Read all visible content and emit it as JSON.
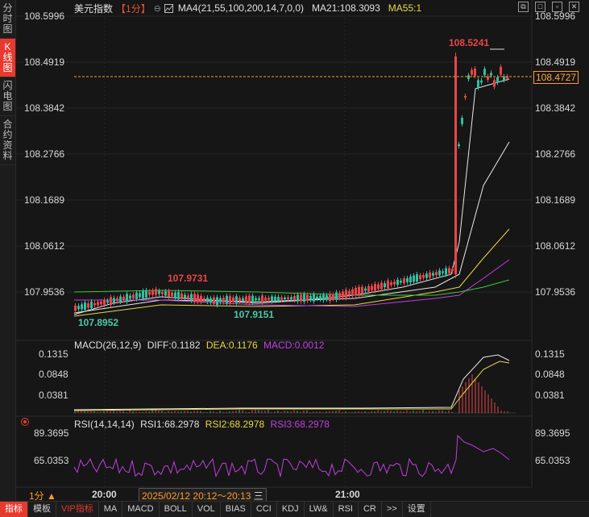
{
  "side_tabs": [
    {
      "label": "分时图"
    },
    {
      "label": "K线图"
    },
    {
      "label": "闪电图"
    },
    {
      "label": "合约资料"
    }
  ],
  "header": {
    "title": "美元指数",
    "period": "【1分】",
    "ma4": "MA4(21,55,100,200,14,7,0,0)",
    "ma21": "MA21:108.3093",
    "ma55": "MA55:1"
  },
  "window_controls": [
    "restore-icon",
    "maximize-icon",
    "window-icon",
    "close-icon"
  ],
  "price_axis": {
    "ticks": [
      "108.5996",
      "108.4919",
      "108.3842",
      "108.2766",
      "108.1689",
      "108.0612",
      "107.9536"
    ],
    "current_price": "108.4727",
    "current_price_color": "#ff9a2a"
  },
  "annotations": {
    "high_label": "108.5241",
    "mid_high_label": "107.9731",
    "low_label_1": "107.8952",
    "low_label_2": "107.9151"
  },
  "macd": {
    "label": "MACD(26,12,9)",
    "diff": "DIFF:0.1182",
    "dea": "DEA:0.1176",
    "macd": "MACD:0.0012",
    "ticks": [
      "0.1315",
      "0.0848",
      "0.0381"
    ]
  },
  "rsi": {
    "label": "RSI(14,14,14)",
    "rsi1": "RSI1:68.2978",
    "rsi2": "RSI2:68.2978",
    "rsi3": "RSI3:68.2978",
    "ticks": [
      "89.3695",
      "65.0353"
    ]
  },
  "timebar": {
    "period_selector": "1分",
    "time_20": "20:00",
    "time_21": "21:00",
    "range_text": "2025/02/12 20:12～20:13",
    "range_suffix": "三"
  },
  "bottom_tabs": [
    "指标",
    "模板",
    "VIP指标",
    "MA",
    "MACD",
    "BOLL",
    "VOL",
    "BIAS",
    "CCI",
    "KDJ",
    "LW&",
    "RSI",
    "CR",
    ">>",
    "设置"
  ],
  "colors": {
    "up": "#e8464a",
    "down": "#2fbfa0",
    "accent": "#e8392f",
    "ma_white": "#e8e8e8",
    "ma_yellow": "#e8d84a",
    "ma_purple": "#c040e0",
    "ma_green": "#3cc83c",
    "dea_yellow": "#e8d84a",
    "rsi_purple": "#c040e0"
  }
}
